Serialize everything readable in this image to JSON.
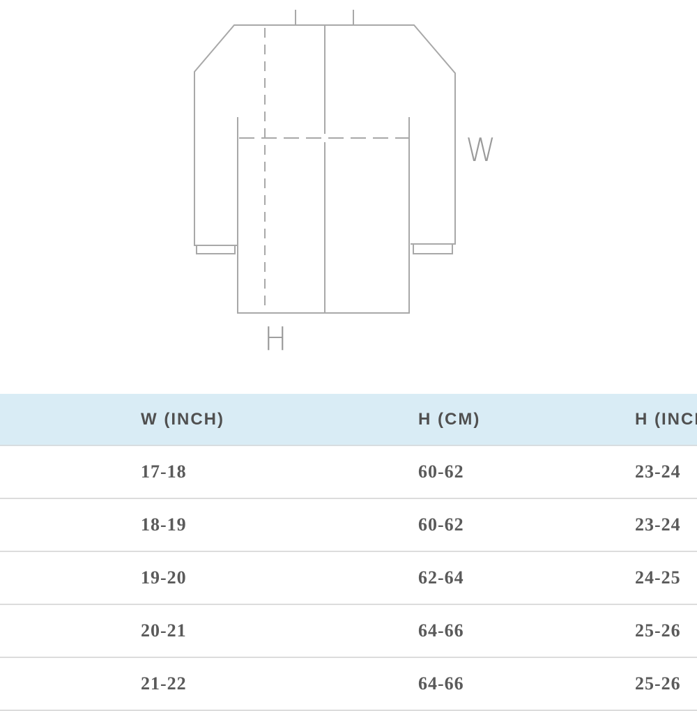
{
  "diagram": {
    "width_label": "W",
    "height_label": "H",
    "line_color": "#a8a8a8"
  },
  "table": {
    "header_bg": "#d9ecf5",
    "headers": [
      "W (INCH)",
      "H (CM)",
      "H (INCH)"
    ],
    "rows": [
      [
        "17-18",
        "60-62",
        "23-24"
      ],
      [
        "18-19",
        "60-62",
        "23-24"
      ],
      [
        "19-20",
        "62-64",
        "24-25"
      ],
      [
        "20-21",
        "64-66",
        "25-26"
      ],
      [
        "21-22",
        "64-66",
        "25-26"
      ]
    ]
  }
}
